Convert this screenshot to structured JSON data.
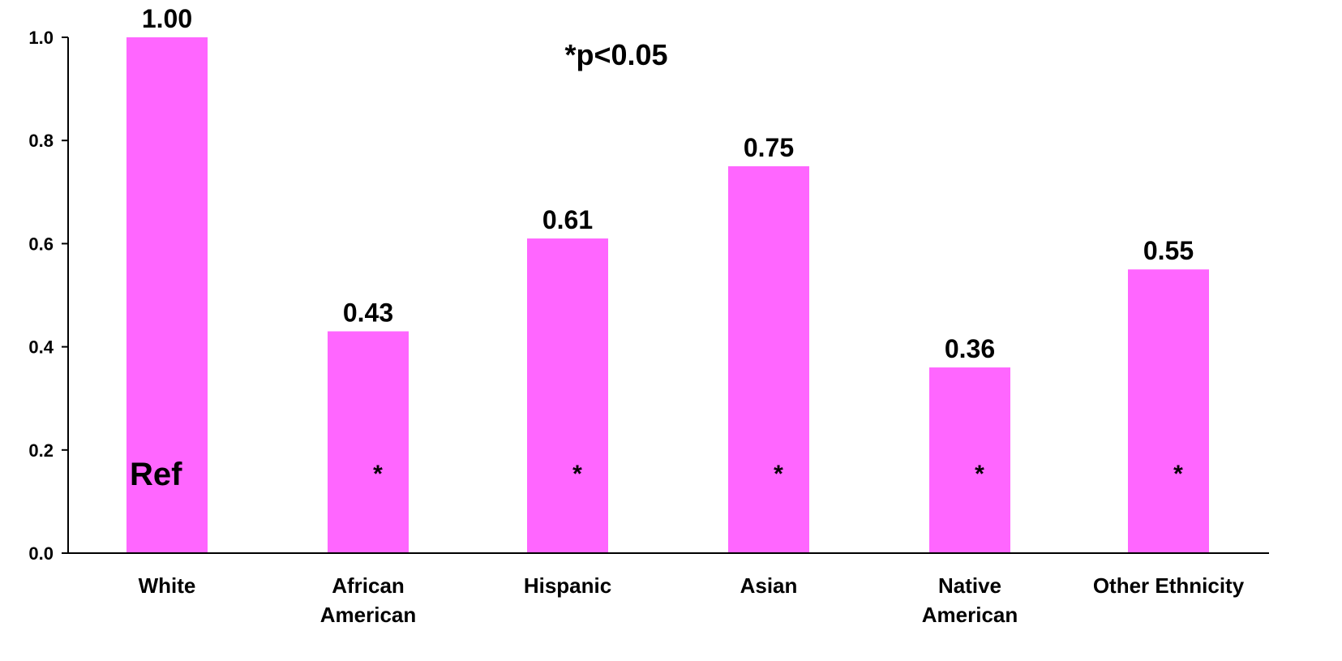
{
  "chart_data": {
    "type": "bar",
    "categories": [
      [
        "White"
      ],
      [
        "African",
        "American"
      ],
      [
        "Hispanic"
      ],
      [
        "Asian"
      ],
      [
        "Native",
        "American"
      ],
      [
        "Other Ethnicity"
      ]
    ],
    "values": [
      1.0,
      0.43,
      0.61,
      0.75,
      0.36,
      0.55
    ],
    "value_labels": [
      "1.00",
      "0.43",
      "0.61",
      "0.75",
      "0.36",
      "0.55"
    ],
    "bar_annotations": [
      "Ref",
      "*",
      "*",
      "*",
      "*",
      "*"
    ],
    "annotation": "*p<0.05",
    "ylim": [
      0,
      1.0
    ],
    "yticks": [
      0.0,
      0.2,
      0.4,
      0.6,
      0.8,
      1.0
    ],
    "ytick_labels": [
      "0.0",
      "0.2",
      "0.4",
      "0.6",
      "0.8",
      "1.0"
    ],
    "bar_color": "#ff66ff",
    "axis_color": "#000000",
    "grid": false,
    "legend": false
  }
}
